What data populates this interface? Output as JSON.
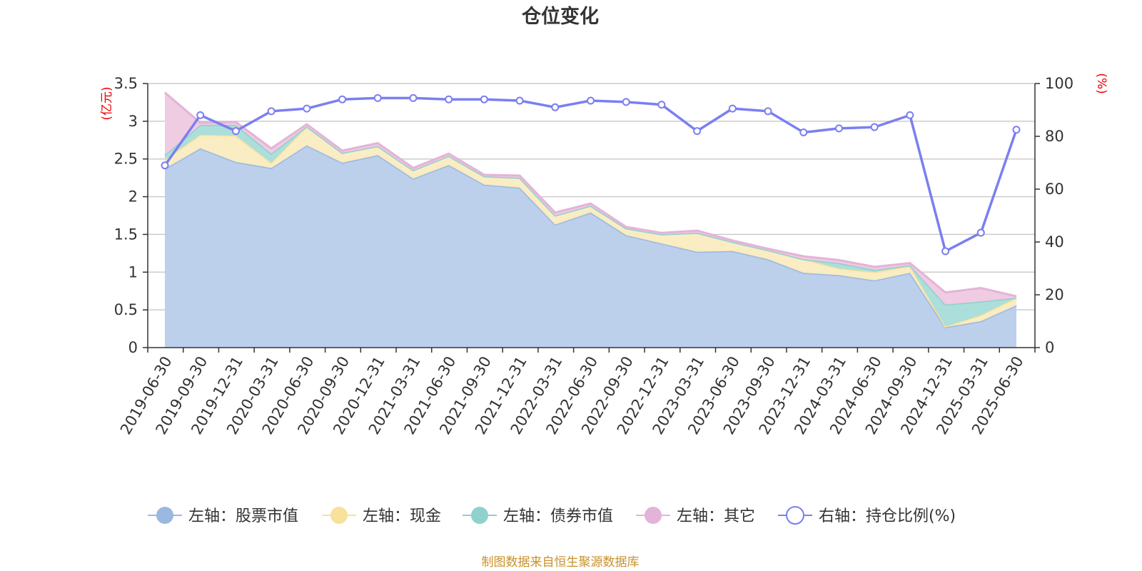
{
  "chart_data": {
    "type": "area",
    "title": "仓位变化",
    "y_left_unit": "(亿元)",
    "y_right_unit": "(%)",
    "y_left_ticks": [
      "0",
      "0.5",
      "1",
      "1.5",
      "2",
      "2.5",
      "3",
      "3.5"
    ],
    "y_right_ticks": [
      "0",
      "20",
      "40",
      "60",
      "80",
      "100"
    ],
    "y_left_range": [
      0,
      3.5
    ],
    "y_right_range": [
      0,
      100
    ],
    "grid": true,
    "legend_position": "bottom",
    "x_labels": [
      "2019-06-30",
      "2019-09-30",
      "2019-12-31",
      "2020-03-31",
      "2020-06-30",
      "2020-09-30",
      "2020-12-31",
      "2021-03-31",
      "2021-06-30",
      "2021-09-30",
      "2021-12-31",
      "2022-03-31",
      "2022-06-30",
      "2022-09-30",
      "2022-12-31",
      "2023-03-31",
      "2023-06-30",
      "2023-09-30",
      "2023-12-31",
      "2024-03-31",
      "2024-06-30",
      "2024-09-30",
      "2024-12-31",
      "2025-03-31",
      "2025-06-30"
    ],
    "series": [
      {
        "name": "左轴：股票市值",
        "axis": "left",
        "kind": "stacked-area",
        "color": "#9bb8e0",
        "fill": "#b8cdeb",
        "values": [
          2.37,
          2.64,
          2.46,
          2.38,
          2.68,
          2.45,
          2.55,
          2.24,
          2.42,
          2.16,
          2.12,
          1.63,
          1.79,
          1.49,
          1.38,
          1.27,
          1.28,
          1.17,
          0.99,
          0.96,
          0.89,
          0.99,
          0.27,
          0.35,
          0.56
        ]
      },
      {
        "name": "左轴：现金",
        "axis": "left",
        "kind": "stacked-area",
        "color": "#f7e19b",
        "fill": "#faecc0",
        "values": [
          0.12,
          0.18,
          0.35,
          0.07,
          0.25,
          0.13,
          0.12,
          0.11,
          0.12,
          0.11,
          0.13,
          0.12,
          0.09,
          0.09,
          0.12,
          0.25,
          0.12,
          0.12,
          0.18,
          0.09,
          0.11,
          0.09,
          0.01,
          0.08,
          0.1
        ]
      },
      {
        "name": "左轴：债券市值",
        "axis": "left",
        "kind": "stacked-area",
        "color": "#8fd1cd",
        "fill": "#a8ddd9",
        "values": [
          0.06,
          0.13,
          0.14,
          0.12,
          0,
          0,
          0,
          0,
          0,
          0,
          0,
          0,
          0,
          0,
          0,
          0,
          0,
          0,
          0,
          0.07,
          0.03,
          0.01,
          0.29,
          0.18,
          0
        ]
      },
      {
        "name": "左轴：其它",
        "axis": "left",
        "kind": "stacked-area",
        "color": "#e4b3d8",
        "fill": "#efc9e1",
        "values": [
          0.83,
          0.03,
          0.04,
          0.07,
          0.03,
          0.03,
          0.04,
          0.03,
          0.03,
          0.02,
          0.03,
          0.04,
          0.03,
          0.02,
          0.02,
          0.03,
          0.02,
          0.02,
          0.04,
          0.04,
          0.04,
          0.03,
          0.16,
          0.18,
          0.02
        ]
      },
      {
        "name": "右轴：持仓比例(%)",
        "axis": "right",
        "kind": "line",
        "color": "#7b7ff0",
        "values": [
          69,
          88,
          82,
          89.5,
          90.5,
          94,
          94.5,
          94.5,
          94,
          94,
          93.5,
          91,
          93.5,
          93,
          92,
          82,
          90.5,
          89.5,
          81.5,
          83,
          83.5,
          88,
          36.5,
          43.5,
          82.5
        ]
      }
    ],
    "source_note": "制图数据来自恒生聚源数据库"
  }
}
